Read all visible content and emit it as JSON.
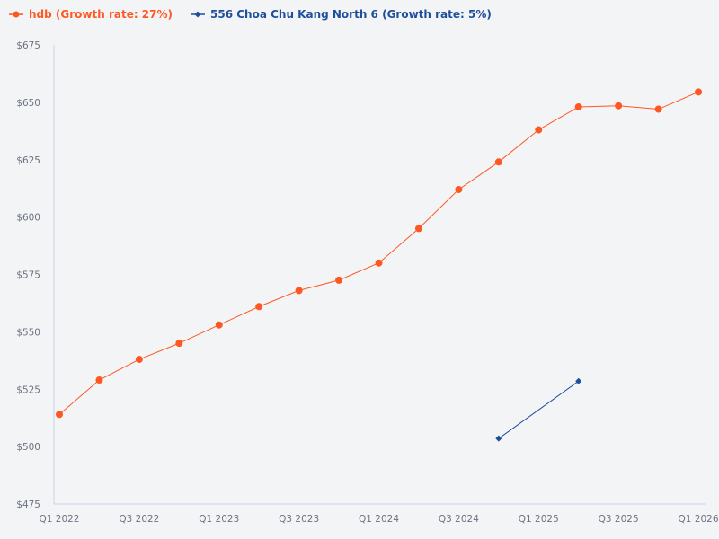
{
  "legend": {
    "items": [
      {
        "label": "hdb (Growth rate: 27%)",
        "color": "#ff5722",
        "marker": "circle"
      },
      {
        "label": "556 Choa Chu Kang North 6 (Growth rate: 5%)",
        "color": "#1f4e9c",
        "marker": "diamond"
      }
    ]
  },
  "colors": {
    "background": "#f3f4f6",
    "axis": "#c9d3e6",
    "tick_text": "#6b7280"
  },
  "chart_data": {
    "type": "line",
    "title": "",
    "xlabel": "",
    "ylabel": "",
    "ylim": [
      475,
      675
    ],
    "yticks": [
      "$475",
      "$500",
      "$525",
      "$550",
      "$575",
      "$600",
      "$625",
      "$650",
      "$675"
    ],
    "xticks": [
      "Q1 2022",
      "Q3 2022",
      "Q1 2023",
      "Q3 2023",
      "Q1 2024",
      "Q3 2024",
      "Q1 2025",
      "Q3 2025",
      "Q1 2026"
    ],
    "categories": [
      "Q1 2022",
      "Q2 2022",
      "Q3 2022",
      "Q4 2022",
      "Q1 2023",
      "Q2 2023",
      "Q3 2023",
      "Q4 2023",
      "Q1 2024",
      "Q2 2024",
      "Q3 2024",
      "Q4 2024",
      "Q1 2025",
      "Q2 2025",
      "Q3 2025",
      "Q4 2025",
      "Q1 2026"
    ],
    "grid": false,
    "legend_position": "top-left",
    "series": [
      {
        "name": "hdb (Growth rate: 27%)",
        "color": "#ff5722",
        "marker": "circle",
        "values": [
          514,
          529,
          538,
          545,
          553,
          561,
          568,
          572.5,
          580,
          595,
          612,
          624,
          638,
          648,
          648.5,
          647,
          654.5
        ]
      },
      {
        "name": "556 Choa Chu Kang North 6 (Growth rate: 5%)",
        "color": "#1f4e9c",
        "marker": "diamond",
        "values": [
          null,
          null,
          null,
          null,
          null,
          null,
          null,
          null,
          null,
          null,
          null,
          503.5,
          null,
          528.5,
          null,
          null,
          null
        ]
      }
    ]
  }
}
